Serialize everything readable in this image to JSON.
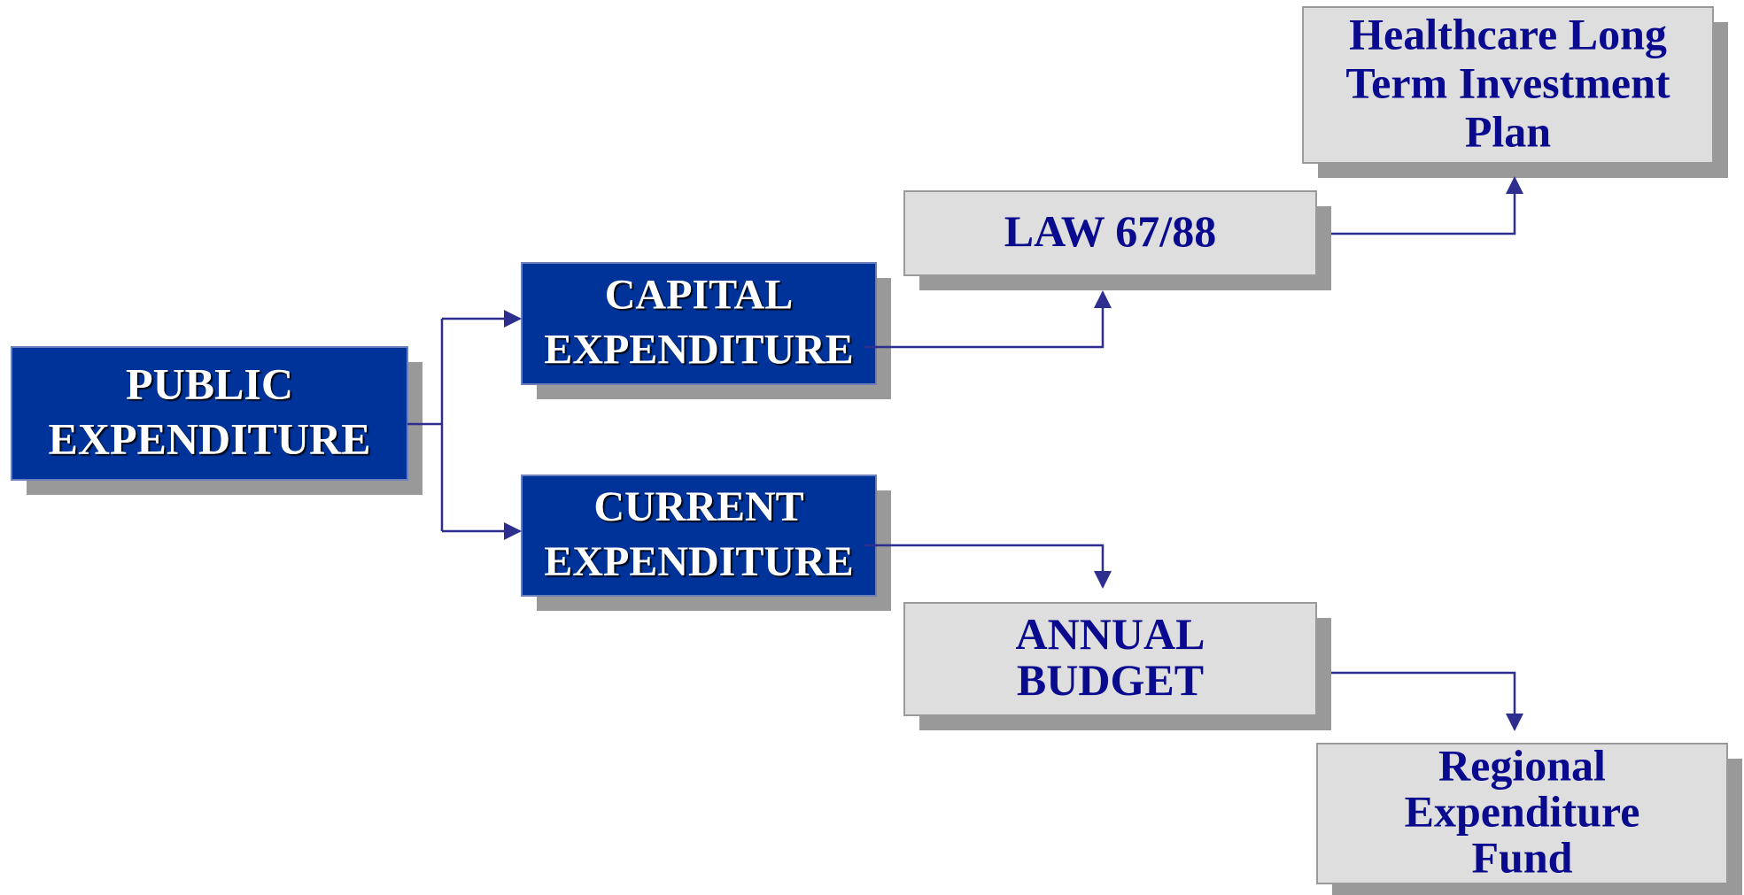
{
  "nodes": [
    {
      "lines": [
        "PUBLIC",
        "EXPENDITURE"
      ]
    },
    {
      "lines": [
        "CAPITAL",
        "EXPENDITURE"
      ]
    },
    {
      "lines": [
        "CURRENT",
        "EXPENDITURE"
      ]
    },
    {
      "lines": [
        "LAW 67/88"
      ]
    },
    {
      "lines": [
        "Healthcare Long",
        "Term Investment",
        "Plan"
      ]
    },
    {
      "lines": [
        "ANNUAL",
        "BUDGET"
      ]
    },
    {
      "lines": [
        "Regional",
        "Expenditure",
        "Fund"
      ]
    }
  ]
}
